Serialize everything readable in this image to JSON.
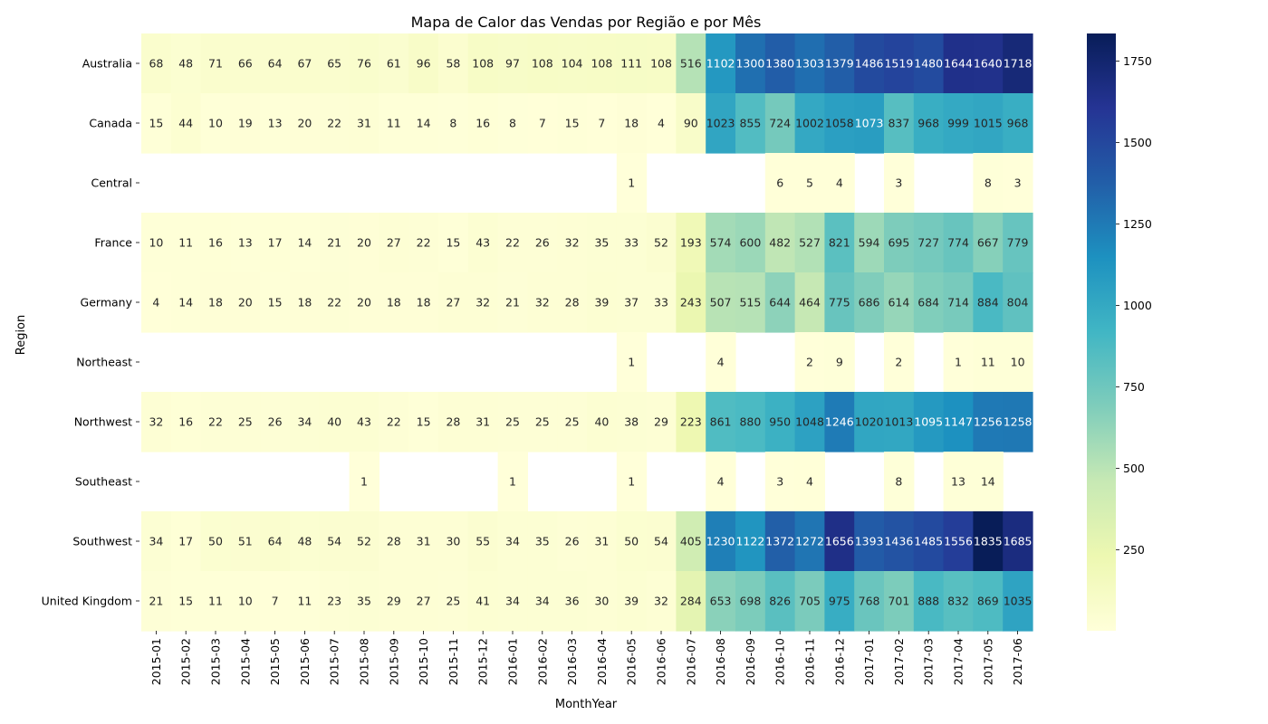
{
  "chart_data": {
    "type": "heatmap",
    "title": "Mapa de Calor das Vendas por Região e por Mês",
    "xlabel": "MonthYear",
    "ylabel": "Region",
    "colormap": "YlGnBu",
    "colors": [
      "#ffffd9",
      "#edf8b1",
      "#c7e9b4",
      "#7fcdbb",
      "#41b6c4",
      "#1d91c0",
      "#225ea8",
      "#253494",
      "#081d58"
    ],
    "missing_color": "#ffffff",
    "vmin": 1,
    "vmax": 1835,
    "colorbar_ticks": [
      250,
      500,
      750,
      1000,
      1250,
      1500,
      1750
    ],
    "colorbar_tick_labels": [
      "250",
      "500",
      "750",
      "1000",
      "1250",
      "1500",
      "1750"
    ],
    "x": [
      "2015-01",
      "2015-02",
      "2015-03",
      "2015-04",
      "2015-05",
      "2015-06",
      "2015-07",
      "2015-08",
      "2015-09",
      "2015-10",
      "2015-11",
      "2015-12",
      "2016-01",
      "2016-02",
      "2016-03",
      "2016-04",
      "2016-05",
      "2016-06",
      "2016-07",
      "2016-08",
      "2016-09",
      "2016-10",
      "2016-11",
      "2016-12",
      "2017-01",
      "2017-02",
      "2017-03",
      "2017-04",
      "2017-05",
      "2017-06"
    ],
    "y": [
      "Australia",
      "Canada",
      "Central",
      "France",
      "Germany",
      "Northeast",
      "Northwest",
      "Southeast",
      "Southwest",
      "United Kingdom"
    ],
    "values": [
      [
        68,
        48,
        71,
        66,
        64,
        67,
        65,
        76,
        61,
        96,
        58,
        108,
        97,
        108,
        104,
        108,
        111,
        108,
        516,
        1102,
        1300,
        1380,
        1303,
        1379,
        1486,
        1519,
        1480,
        1644,
        1640,
        1718
      ],
      [
        15,
        44,
        10,
        19,
        13,
        20,
        22,
        31,
        11,
        14,
        8,
        16,
        8,
        7,
        15,
        7,
        18,
        4,
        90,
        1023,
        855,
        724,
        1002,
        1058,
        1073,
        837,
        968,
        999,
        1015,
        968
      ],
      [
        null,
        null,
        null,
        null,
        null,
        null,
        null,
        null,
        null,
        null,
        null,
        null,
        null,
        null,
        null,
        null,
        1,
        null,
        null,
        null,
        null,
        6,
        5,
        4,
        null,
        3,
        null,
        null,
        8,
        3
      ],
      [
        10,
        11,
        16,
        13,
        17,
        14,
        21,
        20,
        27,
        22,
        15,
        43,
        22,
        26,
        32,
        35,
        33,
        52,
        193,
        574,
        600,
        482,
        527,
        821,
        594,
        695,
        727,
        774,
        667,
        779
      ],
      [
        4,
        14,
        18,
        20,
        15,
        18,
        22,
        20,
        18,
        18,
        27,
        32,
        21,
        32,
        28,
        39,
        37,
        33,
        243,
        507,
        515,
        644,
        464,
        775,
        686,
        614,
        684,
        714,
        884,
        804
      ],
      [
        null,
        null,
        null,
        null,
        null,
        null,
        null,
        null,
        null,
        null,
        null,
        null,
        null,
        null,
        null,
        null,
        1,
        null,
        null,
        4,
        null,
        null,
        2,
        9,
        null,
        2,
        null,
        1,
        11,
        10
      ],
      [
        32,
        16,
        22,
        25,
        26,
        34,
        40,
        43,
        22,
        15,
        28,
        31,
        25,
        25,
        25,
        40,
        38,
        29,
        223,
        861,
        880,
        950,
        1048,
        1246,
        1020,
        1013,
        1095,
        1147,
        1256,
        1258
      ],
      [
        null,
        null,
        null,
        null,
        null,
        null,
        null,
        1,
        null,
        null,
        null,
        null,
        1,
        null,
        null,
        null,
        1,
        null,
        null,
        4,
        null,
        3,
        4,
        null,
        null,
        8,
        null,
        13,
        14,
        null
      ],
      [
        34,
        17,
        50,
        51,
        64,
        48,
        54,
        52,
        28,
        31,
        30,
        55,
        34,
        35,
        26,
        31,
        50,
        54,
        405,
        1230,
        1122,
        1372,
        1272,
        1656,
        1393,
        1436,
        1485,
        1556,
        1835,
        1685
      ],
      [
        21,
        15,
        11,
        10,
        7,
        11,
        23,
        35,
        29,
        27,
        25,
        41,
        34,
        34,
        36,
        30,
        39,
        32,
        284,
        653,
        698,
        826,
        705,
        975,
        768,
        701,
        888,
        832,
        869,
        1035
      ]
    ]
  }
}
